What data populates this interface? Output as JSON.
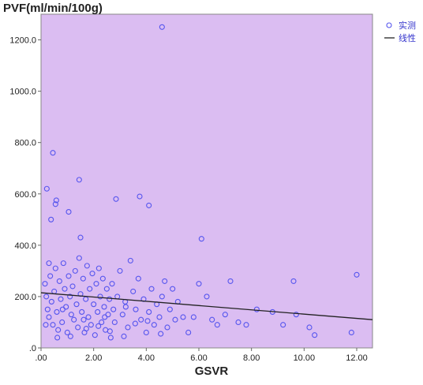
{
  "chart_data": {
    "type": "scatter",
    "xlabel": "GSVR",
    "ylabel": "PVF(ml/min/100g)",
    "xlim": [
      0,
      12.6
    ],
    "ylim": [
      0,
      1300
    ],
    "x_ticks": [
      ".00",
      "2.00",
      "4.00",
      "6.00",
      "8.00",
      "10.00",
      "12.00"
    ],
    "y_ticks": [
      ".0",
      "200.0",
      "400.0",
      "600.0",
      "800.0",
      "1000.0",
      "1200.0"
    ],
    "x_tick_values": [
      0,
      2,
      4,
      6,
      8,
      10,
      12
    ],
    "y_tick_values": [
      0,
      200,
      400,
      600,
      800,
      1000,
      1200
    ],
    "background": "#dbbdf2",
    "marker_color": "#5555ee",
    "line_color": "#222222",
    "legend": {
      "position": "top-right",
      "entries": [
        "实测",
        "线性"
      ]
    },
    "fit_line": {
      "x": [
        0,
        12.6
      ],
      "y": [
        215,
        110
      ]
    },
    "series": [
      {
        "name": "实测",
        "points": [
          [
            0.22,
            620
          ],
          [
            0.45,
            760
          ],
          [
            0.38,
            500
          ],
          [
            0.55,
            560
          ],
          [
            0.58,
            575
          ],
          [
            1.05,
            530
          ],
          [
            1.45,
            655
          ],
          [
            2.85,
            580
          ],
          [
            3.75,
            590
          ],
          [
            4.1,
            555
          ],
          [
            4.6,
            1250
          ],
          [
            6.1,
            425
          ],
          [
            1.5,
            430
          ],
          [
            0.3,
            330
          ],
          [
            0.15,
            250
          ],
          [
            0.2,
            200
          ],
          [
            0.25,
            150
          ],
          [
            0.3,
            120
          ],
          [
            0.35,
            280
          ],
          [
            0.4,
            180
          ],
          [
            0.45,
            90
          ],
          [
            0.5,
            220
          ],
          [
            0.55,
            310
          ],
          [
            0.6,
            140
          ],
          [
            0.65,
            70
          ],
          [
            0.7,
            260
          ],
          [
            0.75,
            190
          ],
          [
            0.8,
            100
          ],
          [
            0.85,
            330
          ],
          [
            0.9,
            230
          ],
          [
            0.95,
            160
          ],
          [
            1.0,
            60
          ],
          [
            1.05,
            280
          ],
          [
            1.1,
            200
          ],
          [
            1.15,
            130
          ],
          [
            1.2,
            240
          ],
          [
            1.25,
            110
          ],
          [
            1.3,
            300
          ],
          [
            1.35,
            170
          ],
          [
            1.4,
            80
          ],
          [
            1.45,
            350
          ],
          [
            1.5,
            210
          ],
          [
            1.55,
            140
          ],
          [
            1.6,
            270
          ],
          [
            1.65,
            60
          ],
          [
            1.7,
            190
          ],
          [
            1.75,
            320
          ],
          [
            1.8,
            120
          ],
          [
            1.85,
            230
          ],
          [
            1.9,
            90
          ],
          [
            1.95,
            290
          ],
          [
            2.0,
            170
          ],
          [
            2.05,
            50
          ],
          [
            2.1,
            250
          ],
          [
            2.15,
            140
          ],
          [
            2.2,
            310
          ],
          [
            2.25,
            200
          ],
          [
            2.3,
            100
          ],
          [
            2.35,
            270
          ],
          [
            2.4,
            160
          ],
          [
            2.45,
            70
          ],
          [
            2.5,
            230
          ],
          [
            2.55,
            130
          ],
          [
            2.6,
            190
          ],
          [
            2.65,
            40
          ],
          [
            2.7,
            250
          ],
          [
            2.75,
            150
          ],
          [
            2.8,
            100
          ],
          [
            2.9,
            200
          ],
          [
            3.0,
            300
          ],
          [
            3.1,
            130
          ],
          [
            3.2,
            180
          ],
          [
            3.3,
            80
          ],
          [
            3.4,
            340
          ],
          [
            3.5,
            220
          ],
          [
            3.6,
            150
          ],
          [
            3.7,
            270
          ],
          [
            3.8,
            110
          ],
          [
            3.9,
            190
          ],
          [
            4.0,
            60
          ],
          [
            4.1,
            140
          ],
          [
            4.2,
            230
          ],
          [
            4.3,
            90
          ],
          [
            4.4,
            170
          ],
          [
            4.5,
            120
          ],
          [
            4.6,
            200
          ],
          [
            4.7,
            260
          ],
          [
            4.8,
            80
          ],
          [
            4.9,
            150
          ],
          [
            5.0,
            230
          ],
          [
            5.1,
            110
          ],
          [
            5.2,
            180
          ],
          [
            5.4,
            120
          ],
          [
            5.6,
            60
          ],
          [
            5.8,
            120
          ],
          [
            6.0,
            250
          ],
          [
            6.3,
            200
          ],
          [
            6.5,
            110
          ],
          [
            6.7,
            90
          ],
          [
            7.0,
            130
          ],
          [
            7.2,
            260
          ],
          [
            7.5,
            100
          ],
          [
            7.8,
            90
          ],
          [
            8.2,
            150
          ],
          [
            8.8,
            140
          ],
          [
            9.2,
            90
          ],
          [
            9.6,
            260
          ],
          [
            9.7,
            130
          ],
          [
            10.2,
            80
          ],
          [
            10.4,
            50
          ],
          [
            11.8,
            60
          ],
          [
            12.0,
            285
          ],
          [
            0.18,
            90
          ],
          [
            0.62,
            40
          ],
          [
            1.12,
            45
          ],
          [
            1.72,
            75
          ],
          [
            2.18,
            85
          ],
          [
            2.62,
            65
          ],
          [
            3.15,
            45
          ],
          [
            3.58,
            95
          ],
          [
            4.05,
            105
          ],
          [
            4.55,
            55
          ],
          [
            0.82,
            150
          ],
          [
            1.62,
            110
          ],
          [
            2.42,
            120
          ],
          [
            3.22,
            160
          ]
        ]
      }
    ]
  }
}
